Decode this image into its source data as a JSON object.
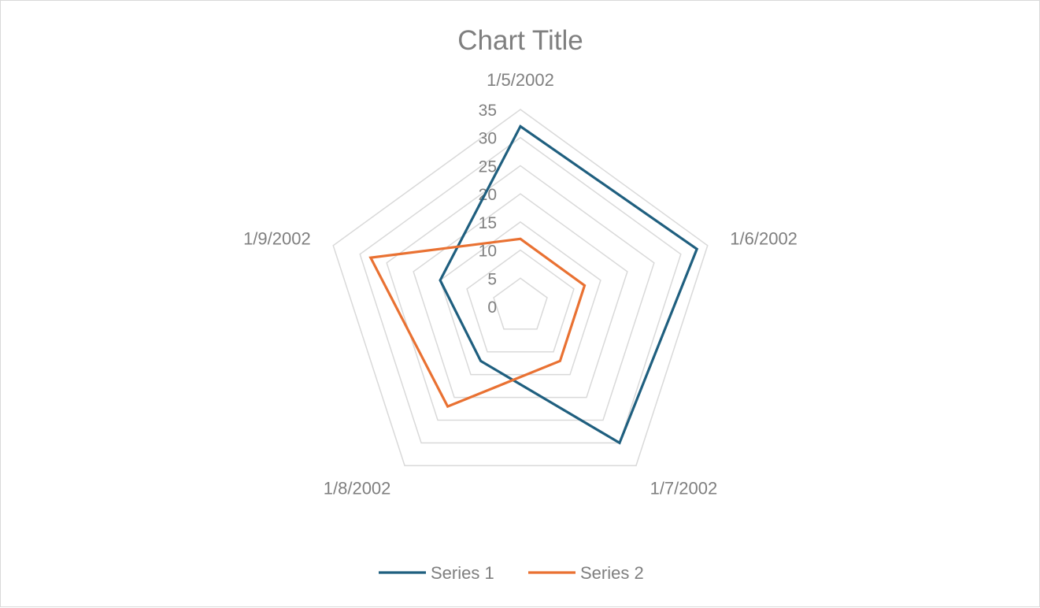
{
  "chart_data": {
    "type": "radar",
    "title": "Chart Title",
    "categories": [
      "1/5/2002",
      "1/6/2002",
      "1/7/2002",
      "1/8/2002",
      "1/9/2002"
    ],
    "series": [
      {
        "name": "Series 1",
        "values": [
          32,
          33,
          30,
          12,
          15
        ],
        "color": "#1f5f7f"
      },
      {
        "name": "Series 2",
        "values": [
          12,
          12,
          12,
          22,
          28
        ],
        "color": "#e97132"
      }
    ],
    "axis": {
      "min": 0,
      "max": 35,
      "ticks": [
        "0",
        "5",
        "10",
        "15",
        "20",
        "25",
        "30",
        "35"
      ]
    },
    "grid": true,
    "legend_position": "bottom"
  }
}
